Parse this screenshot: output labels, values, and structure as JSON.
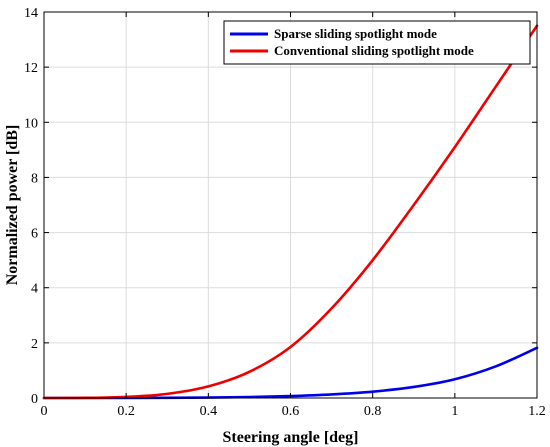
{
  "chart_data": {
    "type": "line",
    "title": "",
    "xlabel": "Steering angle [deg]",
    "ylabel": "Normalized power [dB]",
    "xlim": [
      0,
      1.2
    ],
    "ylim": [
      0,
      14
    ],
    "xticks": [
      0,
      0.2,
      0.4,
      0.6,
      0.8,
      1,
      1.2
    ],
    "xtick_labels": [
      "0",
      "0.2",
      "0.4",
      "0.6",
      "0.8",
      "1",
      "1.2"
    ],
    "yticks": [
      0,
      2,
      4,
      6,
      8,
      10,
      12,
      14
    ],
    "ytick_labels": [
      "0",
      "2",
      "4",
      "6",
      "8",
      "10",
      "12",
      "14"
    ],
    "grid": true,
    "legend_position": "top-right",
    "series": [
      {
        "name": "Sparse sliding spotlight mode",
        "color": "#0000ee",
        "x": [
          0,
          0.1,
          0.2,
          0.3,
          0.4,
          0.5,
          0.6,
          0.7,
          0.8,
          0.9,
          1.0,
          1.1,
          1.2
        ],
        "y": [
          0,
          0.0001,
          0.001,
          0.005,
          0.015,
          0.035,
          0.07,
          0.13,
          0.23,
          0.4,
          0.68,
          1.15,
          1.82
        ]
      },
      {
        "name": "Conventional sliding spotlight mode",
        "color": "#ee0000",
        "x": [
          0,
          0.1,
          0.2,
          0.3,
          0.4,
          0.5,
          0.6,
          0.7,
          0.8,
          0.9,
          1.0,
          1.1,
          1.2
        ],
        "y": [
          0,
          0.005,
          0.04,
          0.15,
          0.42,
          0.95,
          1.85,
          3.25,
          5.0,
          7.0,
          9.1,
          11.3,
          13.5
        ]
      }
    ]
  }
}
